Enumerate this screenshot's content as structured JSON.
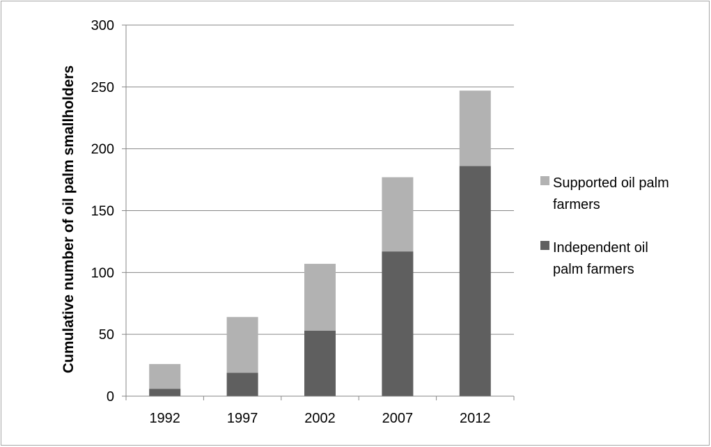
{
  "chart_data": {
    "type": "bar",
    "stacked": true,
    "categories": [
      "1992",
      "1997",
      "2002",
      "2007",
      "2012"
    ],
    "series": [
      {
        "name": "Independent oil palm farmers",
        "color": "#5f5f5f",
        "values": [
          6,
          19,
          53,
          117,
          186
        ]
      },
      {
        "name": "Supported oil palm farmers",
        "color": "#b2b2b2",
        "values": [
          20,
          45,
          54,
          60,
          61
        ]
      }
    ],
    "ylabel": "Cumulative number of oil palm smallholders",
    "xlabel": "",
    "ylim": [
      0,
      300
    ],
    "yticks": [
      0,
      50,
      100,
      150,
      200,
      250,
      300
    ],
    "grid": true,
    "legend_position": "right",
    "legend": [
      {
        "lines": [
          "Supported oil palm",
          "farmers"
        ],
        "color": "#b2b2b2"
      },
      {
        "lines": [
          "Independent oil",
          "palm farmers"
        ],
        "color": "#5f5f5f"
      }
    ]
  }
}
